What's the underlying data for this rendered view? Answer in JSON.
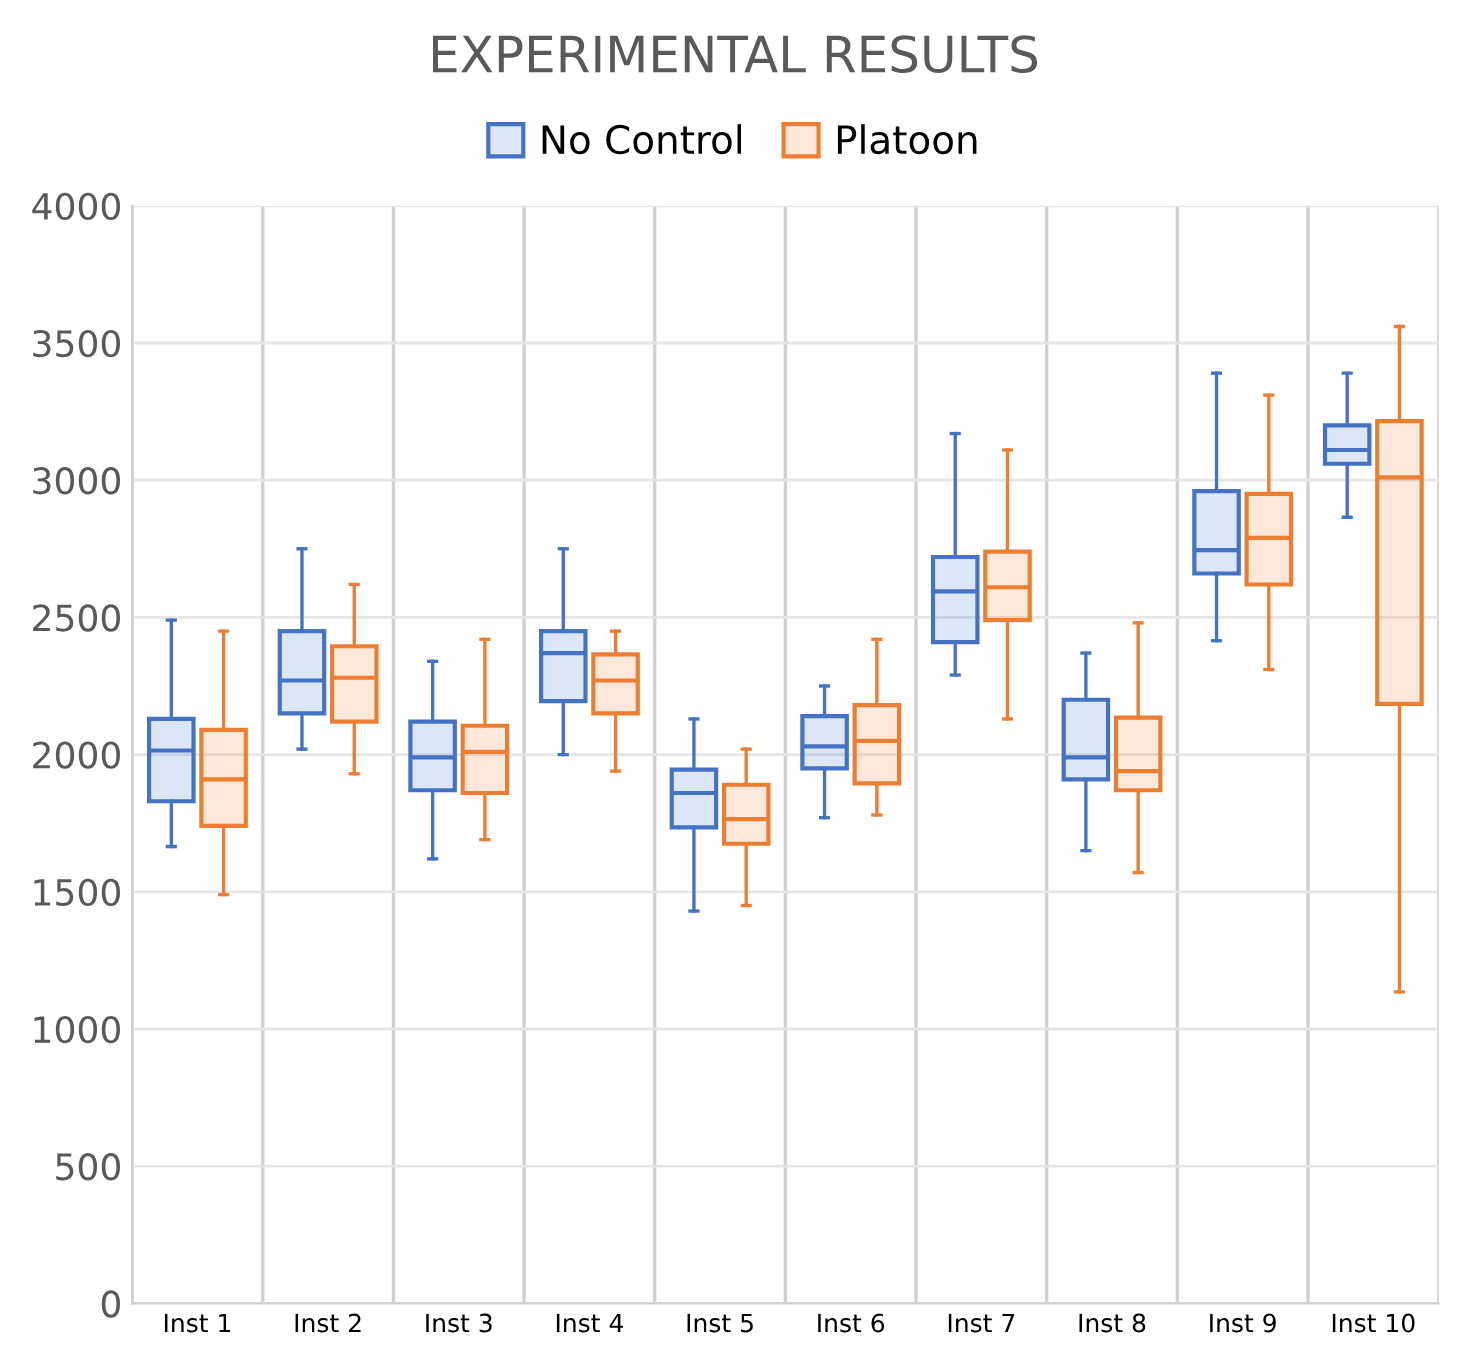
{
  "chart_data": {
    "type": "box",
    "title": "EXPERIMENTAL RESULTS",
    "categories": [
      "Inst 1",
      "Inst 2",
      "Inst 3",
      "Inst 4",
      "Inst 5",
      "Inst 6",
      "Inst 7",
      "Inst 8",
      "Inst 9",
      "Inst 10"
    ],
    "series": [
      {
        "name": "No Control",
        "color": "#4472c4",
        "boxes": [
          {
            "low": 1665,
            "q1": 1830,
            "median": 2015,
            "q3": 2130,
            "high": 2490
          },
          {
            "low": 2020,
            "q1": 2150,
            "median": 2270,
            "q3": 2450,
            "high": 2750
          },
          {
            "low": 1620,
            "q1": 1870,
            "median": 1990,
            "q3": 2120,
            "high": 2340
          },
          {
            "low": 2000,
            "q1": 2195,
            "median": 2370,
            "q3": 2450,
            "high": 2750
          },
          {
            "low": 1430,
            "q1": 1735,
            "median": 1860,
            "q3": 1945,
            "high": 2130
          },
          {
            "low": 1770,
            "q1": 1950,
            "median": 2030,
            "q3": 2140,
            "high": 2250
          },
          {
            "low": 2290,
            "q1": 2410,
            "median": 2595,
            "q3": 2720,
            "high": 3170
          },
          {
            "low": 1650,
            "q1": 1910,
            "median": 1990,
            "q3": 2200,
            "high": 2370
          },
          {
            "low": 2415,
            "q1": 2660,
            "median": 2745,
            "q3": 2960,
            "high": 3390
          },
          {
            "low": 2865,
            "q1": 3060,
            "median": 3110,
            "q3": 3200,
            "high": 3390
          }
        ]
      },
      {
        "name": "Platoon",
        "color": "#ed7d31",
        "boxes": [
          {
            "low": 1490,
            "q1": 1740,
            "median": 1910,
            "q3": 2090,
            "high": 2450
          },
          {
            "low": 1930,
            "q1": 2120,
            "median": 2280,
            "q3": 2395,
            "high": 2620
          },
          {
            "low": 1690,
            "q1": 1860,
            "median": 2010,
            "q3": 2105,
            "high": 2420
          },
          {
            "low": 1940,
            "q1": 2150,
            "median": 2270,
            "q3": 2365,
            "high": 2450
          },
          {
            "low": 1450,
            "q1": 1675,
            "median": 1765,
            "q3": 1890,
            "high": 2020
          },
          {
            "low": 1780,
            "q1": 1895,
            "median": 2050,
            "q3": 2180,
            "high": 2420
          },
          {
            "low": 2130,
            "q1": 2490,
            "median": 2610,
            "q3": 2740,
            "high": 3110
          },
          {
            "low": 1570,
            "q1": 1870,
            "median": 1940,
            "q3": 2135,
            "high": 2480
          },
          {
            "low": 2310,
            "q1": 2620,
            "median": 2790,
            "q3": 2950,
            "high": 3310
          },
          {
            "low": 1135,
            "q1": 2185,
            "median": 3010,
            "q3": 3215,
            "high": 3560
          }
        ]
      }
    ],
    "ylim": [
      0,
      4000
    ],
    "yticks": [
      0,
      500,
      1000,
      1500,
      2000,
      2500,
      3000,
      3500,
      4000
    ],
    "grid": true,
    "legend": "top"
  }
}
